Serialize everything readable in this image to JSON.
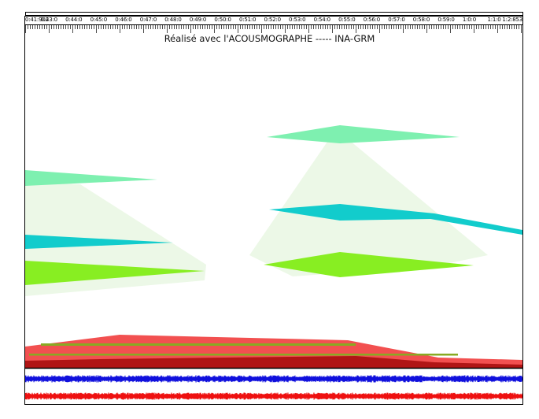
{
  "app": {
    "credit_text": "Réalisé avec l'ACOUSMOGRAPHE ----- INA-GRM"
  },
  "ruler": {
    "tick_labels": [
      "0:41:902",
      "0:43:0",
      "0:44:0",
      "0:45:0",
      "0:46:0",
      "0:47:0",
      "0:48:0",
      "0:49:0",
      "0:50:0",
      "0:51:0",
      "0:52:0",
      "0:53:0",
      "0:54:0",
      "0:55:0",
      "0:56:0",
      "0:57:0",
      "0:58:0",
      "0:59:0",
      "1:0:0",
      "1:1:0",
      "1:2:853"
    ]
  },
  "colors": {
    "mint": "#7ef0b0",
    "cyan": "#12cccc",
    "lime": "#88ee22",
    "pale_green": "#e8f6e0",
    "red": "#f25050",
    "dark_red": "#b01515",
    "olive_stripe": "#88aa22",
    "waveform_blue": "#1010dd",
    "waveform_red": "#ee1010"
  },
  "shapes": [
    {
      "name": "shape-mint-left",
      "color": "mint"
    },
    {
      "name": "shape-cyan-left",
      "color": "cyan"
    },
    {
      "name": "shape-lime-left",
      "color": "lime"
    },
    {
      "name": "shape-mint-right",
      "color": "mint"
    },
    {
      "name": "shape-cyan-right",
      "color": "cyan"
    },
    {
      "name": "shape-lime-right",
      "color": "lime"
    }
  ],
  "waveforms": [
    {
      "name": "waveform-channel-1",
      "color": "waveform_blue"
    },
    {
      "name": "waveform-channel-2",
      "color": "waveform_red"
    }
  ]
}
